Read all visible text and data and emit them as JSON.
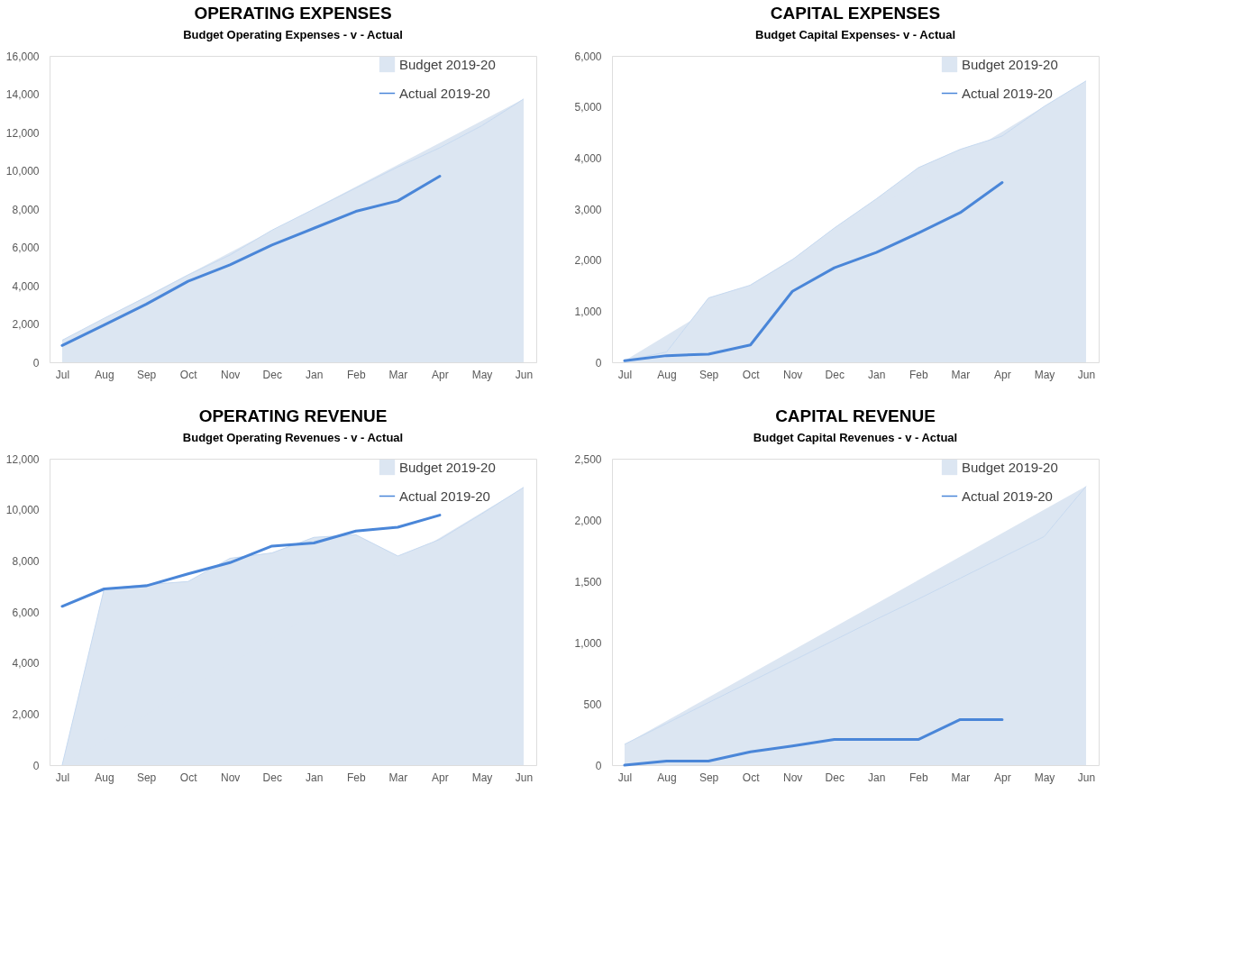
{
  "chart_data": [
    {
      "type": "area",
      "title": "OPERATING EXPENSES",
      "subtitle": "Budget Operating Expenses - v - Actual",
      "categories": [
        "Jul",
        "Aug",
        "Sep",
        "Oct",
        "Nov",
        "Dec",
        "Jan",
        "Feb",
        "Mar",
        "Apr",
        "May",
        "Jun"
      ],
      "ylim": [
        0,
        16000
      ],
      "yticks": [
        0,
        {
          "value": 2000,
          "label": "2,000"
        },
        {
          "value": 4000,
          "label": "4,000"
        },
        {
          "value": 6000,
          "label": "6,000"
        },
        {
          "value": 8000,
          "label": "8,000"
        },
        {
          "value": 10000,
          "label": "10,000"
        },
        {
          "value": 12000,
          "label": "12,000"
        },
        {
          "value": 14000,
          "label": "14,000"
        },
        {
          "value": 16000,
          "label": "16,000"
        }
      ],
      "legend": "top right",
      "series": [
        {
          "name": "Budget 2019-20",
          "color": "#dce6f2",
          "values": [
            1150,
            2300,
            3400,
            4560,
            5600,
            6900,
            8000,
            9100,
            10200,
            11200,
            12350,
            13750
          ]
        },
        {
          "name": "Actual 2019-20",
          "type": "line",
          "color": "#4a86d8",
          "values": [
            880,
            1950,
            3030,
            4230,
            5090,
            6120,
            7000,
            7880,
            8430,
            9720,
            null,
            null
          ]
        }
      ]
    },
    {
      "type": "area",
      "title": "CAPITAL EXPENSES",
      "subtitle": "Budget Capital Expenses- v - Actual",
      "categories": [
        "Jul",
        "Aug",
        "Sep",
        "Oct",
        "Nov",
        "Dec",
        "Jan",
        "Feb",
        "Mar",
        "Apr",
        "May",
        "Jun"
      ],
      "ylim": [
        0,
        6000
      ],
      "yticks": [
        0,
        {
          "value": 1000,
          "label": "1,000"
        },
        {
          "value": 2000,
          "label": "2,000"
        },
        {
          "value": 3000,
          "label": "3,000"
        },
        {
          "value": 4000,
          "label": "4,000"
        },
        {
          "value": 5000,
          "label": "5,000"
        },
        {
          "value": 6000,
          "label": "6,000"
        }
      ],
      "legend": "top right",
      "series": [
        {
          "name": "Budget 2019-20",
          "color": "#c6d9f0",
          "values": [
            30,
            200,
            1260,
            1510,
            2010,
            2630,
            3200,
            3810,
            4170,
            4430,
            5010,
            5510
          ]
        },
        {
          "name": "Actual 2019-20",
          "type": "line",
          "color": "#4a86d8",
          "values": [
            30,
            130,
            160,
            340,
            1390,
            1850,
            2150,
            2530,
            2930,
            3520,
            null,
            null
          ]
        }
      ]
    },
    {
      "type": "area",
      "title": "OPERATING REVENUE",
      "subtitle": "Budget Operating Revenues - v - Actual",
      "categories": [
        "Jul",
        "Aug",
        "Sep",
        "Oct",
        "Nov",
        "Dec",
        "Jan",
        "Feb",
        "Mar",
        "Apr",
        "May",
        "Jun"
      ],
      "ylim": [
        0,
        12000
      ],
      "yticks": [
        0,
        {
          "value": 2000,
          "label": "2,000"
        },
        {
          "value": 4000,
          "label": "4,000"
        },
        {
          "value": 6000,
          "label": "6,000"
        },
        {
          "value": 8000,
          "label": "8,000"
        },
        {
          "value": 10000,
          "label": "10,000"
        },
        {
          "value": 12000,
          "label": "12,000"
        }
      ],
      "legend": "top right",
      "series": [
        {
          "name": "Budget 2019-20",
          "color": "#c6d9f0",
          "values": [
            0,
            6900,
            7070,
            7190,
            8100,
            8310,
            8920,
            9020,
            8190,
            8840,
            9840,
            10880
          ]
        },
        {
          "name": "Actual 2019-20",
          "type": "line",
          "color": "#4a86d8",
          "values": [
            6220,
            6900,
            7020,
            7490,
            7930,
            8580,
            8700,
            9170,
            9320,
            9790,
            null,
            null
          ]
        }
      ]
    },
    {
      "type": "area",
      "title": "CAPITAL REVENUE",
      "subtitle": "Budget Capital Revenues - v - Actual",
      "categories": [
        "Jul",
        "Aug",
        "Sep",
        "Oct",
        "Nov",
        "Dec",
        "Jan",
        "Feb",
        "Mar",
        "Apr",
        "May",
        "Jun"
      ],
      "ylim": [
        0,
        2500
      ],
      "yticks": [
        0,
        500,
        {
          "value": 1000,
          "label": "1,000"
        },
        {
          "value": 1500,
          "label": "1,500"
        },
        {
          "value": 2000,
          "label": "2,000"
        },
        {
          "value": 2500,
          "label": "2,500"
        }
      ],
      "legend": "top right",
      "series": [
        {
          "name": "Budget 2019-20",
          "color": "#c6d9f0",
          "values": [
            170,
            340,
            510,
            680,
            850,
            1020,
            1190,
            1355,
            1525,
            1695,
            1865,
            2275
          ]
        },
        {
          "name": "Actual 2019-20",
          "type": "line",
          "color": "#4a86d8",
          "values": [
            0,
            33,
            33,
            108,
            157,
            209,
            209,
            209,
            372,
            372,
            null,
            null
          ]
        }
      ]
    }
  ]
}
